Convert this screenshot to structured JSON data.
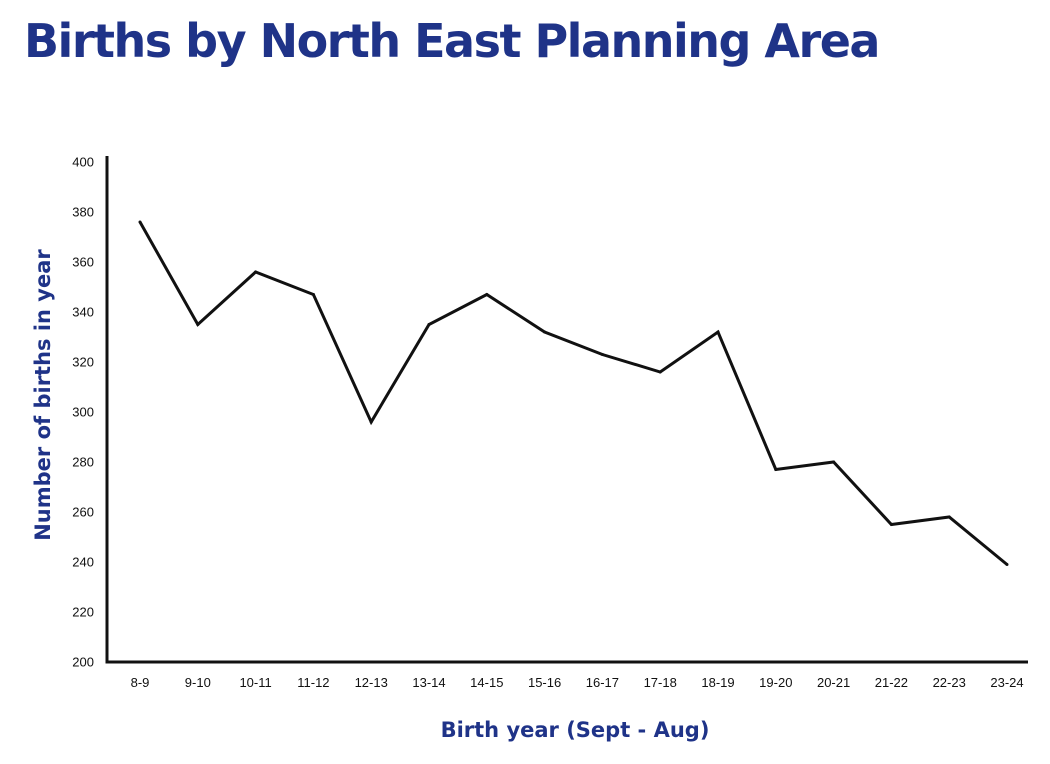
{
  "colors": {
    "title": "#1f3388",
    "axis": "#111111",
    "line": "#111111"
  },
  "chart_data": {
    "type": "line",
    "title": "Births by North East Planning Area",
    "xlabel": "Birth year (Sept - Aug)",
    "ylabel": "Number of births in year",
    "categories": [
      "8-9",
      "9-10",
      "10-11",
      "11-12",
      "12-13",
      "13-14",
      "14-15",
      "15-16",
      "16-17",
      "17-18",
      "18-19",
      "19-20",
      "20-21",
      "21-22",
      "22-23",
      "23-24"
    ],
    "series": [
      {
        "values": [
          376,
          335,
          356,
          347,
          296,
          335,
          347,
          332,
          323,
          316,
          332,
          277,
          280,
          255,
          258,
          239
        ]
      }
    ],
    "ylim": [
      200,
      400
    ],
    "yticks": [
      "200",
      "220",
      "240",
      "260",
      "280",
      "300",
      "320",
      "340",
      "360",
      "380",
      "400"
    ],
    "grid": false,
    "legend": "none"
  }
}
